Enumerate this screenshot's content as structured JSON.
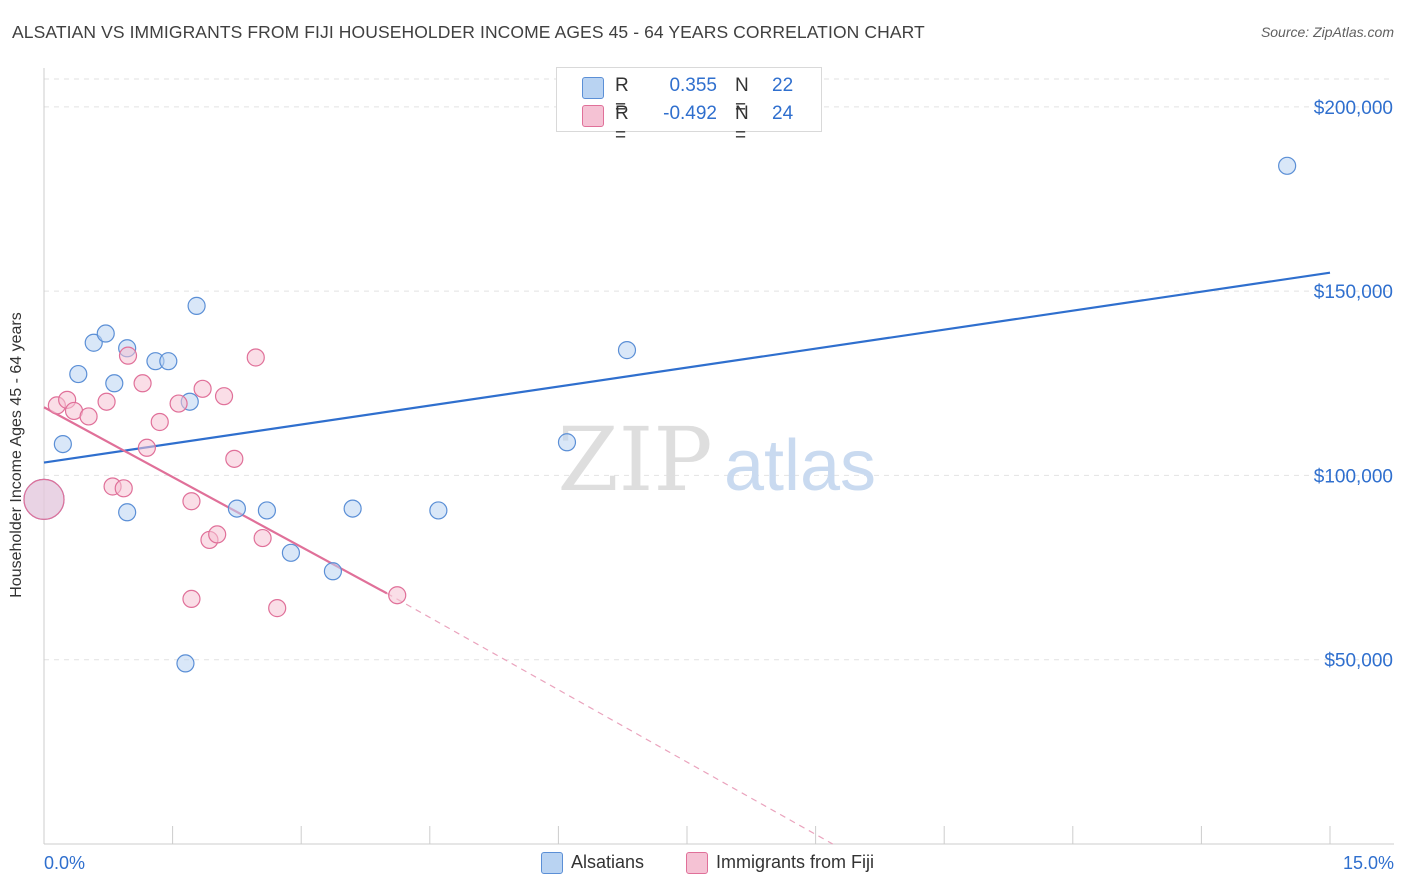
{
  "title": "ALSATIAN VS IMMIGRANTS FROM FIJI HOUSEHOLDER INCOME AGES 45 - 64 YEARS CORRELATION CHART",
  "source": "Source: ZipAtlas.com",
  "watermark": {
    "zip": "ZIP",
    "atlas": "atlas"
  },
  "legend": {
    "r_label": "R =",
    "n_label": "N =",
    "rows": [
      {
        "r": "0.355",
        "n": "22"
      },
      {
        "r": "-0.492",
        "n": "24"
      }
    ]
  },
  "bottom_legend": [
    "Alsatians",
    "Immigrants from Fiji"
  ],
  "chart_data": {
    "type": "scatter",
    "title": "ALSATIAN VS IMMIGRANTS FROM FIJI HOUSEHOLDER INCOME AGES 45 - 64 YEARS CORRELATION CHART",
    "xlabel": "",
    "ylabel": "Householder Income Ages 45 - 64 years",
    "xlim": [
      0,
      15
    ],
    "ylim": [
      0,
      210000
    ],
    "x_tick_labels": [
      "0.0%",
      "15.0%"
    ],
    "y_ticks": [
      50000,
      100000,
      150000,
      200000
    ],
    "y_tick_labels": [
      "$50,000",
      "$100,000",
      "$150,000",
      "$200,000"
    ],
    "grid": true,
    "series": [
      {
        "name": "Alsatians",
        "color": "#5b8fd6",
        "fill": "#b9d3f2",
        "points": [
          [
            0.0,
            93500
          ],
          [
            0.22,
            108500
          ],
          [
            0.4,
            127500
          ],
          [
            0.58,
            136000
          ],
          [
            0.72,
            138500
          ],
          [
            0.82,
            125000
          ],
          [
            0.97,
            134500
          ],
          [
            1.3,
            131000
          ],
          [
            1.45,
            131000
          ],
          [
            1.7,
            120000
          ],
          [
            1.78,
            146000
          ],
          [
            0.97,
            90000
          ],
          [
            1.65,
            49000
          ],
          [
            2.25,
            91000
          ],
          [
            2.6,
            90500
          ],
          [
            2.88,
            79000
          ],
          [
            3.37,
            74000
          ],
          [
            3.6,
            91000
          ],
          [
            4.6,
            90500
          ],
          [
            6.1,
            109000
          ],
          [
            6.8,
            134000
          ],
          [
            14.5,
            184000
          ]
        ],
        "trend": {
          "x0": 0,
          "y0": 103500,
          "x1": 15,
          "y1": 155000
        }
      },
      {
        "name": "Immigrants from Fiji",
        "color": "#e07099",
        "fill": "#f5c2d4",
        "points": [
          [
            0.0,
            93500
          ],
          [
            0.15,
            119000
          ],
          [
            0.27,
            120500
          ],
          [
            0.35,
            117500
          ],
          [
            0.52,
            116000
          ],
          [
            0.73,
            120000
          ],
          [
            0.8,
            97000
          ],
          [
            0.93,
            96500
          ],
          [
            0.98,
            132500
          ],
          [
            1.15,
            125000
          ],
          [
            1.2,
            107500
          ],
          [
            1.35,
            114500
          ],
          [
            1.57,
            119500
          ],
          [
            1.72,
            93000
          ],
          [
            1.85,
            123500
          ],
          [
            1.93,
            82500
          ],
          [
            2.02,
            84000
          ],
          [
            2.1,
            121500
          ],
          [
            2.22,
            104500
          ],
          [
            2.47,
            132000
          ],
          [
            2.55,
            83000
          ],
          [
            2.72,
            64000
          ],
          [
            1.72,
            66500
          ],
          [
            4.12,
            67500
          ]
        ],
        "trend": {
          "x0": 0,
          "y0": 118500,
          "x1": 4.0,
          "y1": 68000
        },
        "trend_dashed": {
          "x0": 4.0,
          "y0": 68000,
          "x1": 9.2,
          "y1": 0
        }
      }
    ]
  }
}
